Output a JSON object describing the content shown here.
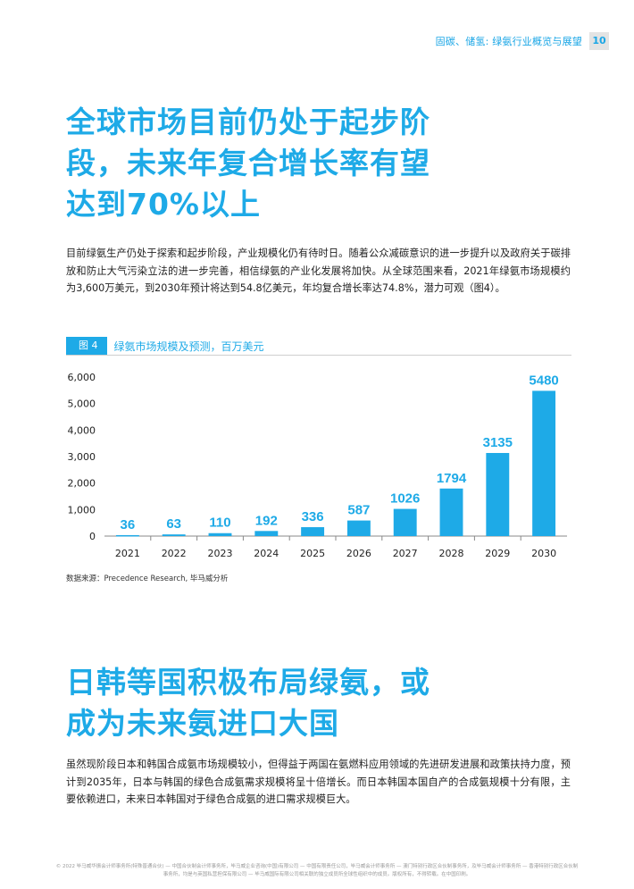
{
  "header": {
    "title": "固碳、储氢: 绿氨行业概览与展望",
    "page_number": "10"
  },
  "section1": {
    "heading_lines": [
      "全球市场目前仍处于起步阶",
      "段，未来年复合增长率有望",
      "达到70%以上"
    ],
    "paragraph": "目前绿氨生产仍处于探索和起步阶段，产业规模化仍有待时日。随着公众减碳意识的进一步提升以及政府关于碳排放和防止大气污染立法的进一步完善，相信绿氨的产业化发展将加快。从全球范围来看，2021年绿氨市场规模约为3,600万美元，到2030年预计将达到54.8亿美元，年均复合增长率达74.8%，潜力可观（图4）。"
  },
  "figure": {
    "tag": "图 4",
    "title": "绿氨市场规模及预测，百万美元",
    "source": "数据来源：Precedence Research, 毕马威分析"
  },
  "chart_data": {
    "type": "bar",
    "title": "绿氨市场规模及预测，百万美元",
    "categories": [
      "2021",
      "2022",
      "2023",
      "2024",
      "2025",
      "2026",
      "2027",
      "2028",
      "2029",
      "2030"
    ],
    "values": [
      36,
      63,
      110,
      192,
      336,
      587,
      1026,
      1794,
      3135,
      5480
    ],
    "value_labels": [
      "36",
      "63",
      "110",
      "192",
      "336",
      "587",
      "1026",
      "1794",
      "3135",
      "5480"
    ],
    "y_ticks": [
      0,
      1000,
      2000,
      3000,
      4000,
      5000,
      6000
    ],
    "y_tick_labels": [
      "0",
      "1,000",
      "2,000",
      "3,000",
      "4,000",
      "5,000",
      "6,000"
    ],
    "ylim": [
      0,
      6000
    ],
    "xlabel": "",
    "ylabel": "",
    "grid": false,
    "bar_color": "#1eaae7"
  },
  "section2": {
    "heading_lines": [
      "日韩等国积极布局绿氨，或",
      "成为未来氨进口大国"
    ],
    "paragraph": "虽然现阶段日本和韩国合成氨市场规模较小，但得益于两国在氨燃料应用领域的先进研发进展和政策扶持力度，预计到2035年，日本与韩国的绿色合成氨需求规模将呈十倍增长。而日本韩国本国自产的合成氨规模十分有限，主要依赖进口，未来日本韩国对于绿色合成氨的进口需求规模巨大。"
  },
  "footer": {
    "text": "© 2022 毕马威华振会计师事务所(特殊普通合伙) — 中国合伙制会计师事务所，毕马威企业咨询(中国)有限公司 — 中国有限责任公司，毕马威会计师事务所 — 澳门特别行政区合伙制事务所，及毕马威会计师事务所 — 香港特别行政区合伙制事务所，均是与英国私营担保有限公司 — 毕马威国际有限公司相关联的独立成员所全球性组织中的成员。版权所有，不得转载。在中国印刷。"
  }
}
